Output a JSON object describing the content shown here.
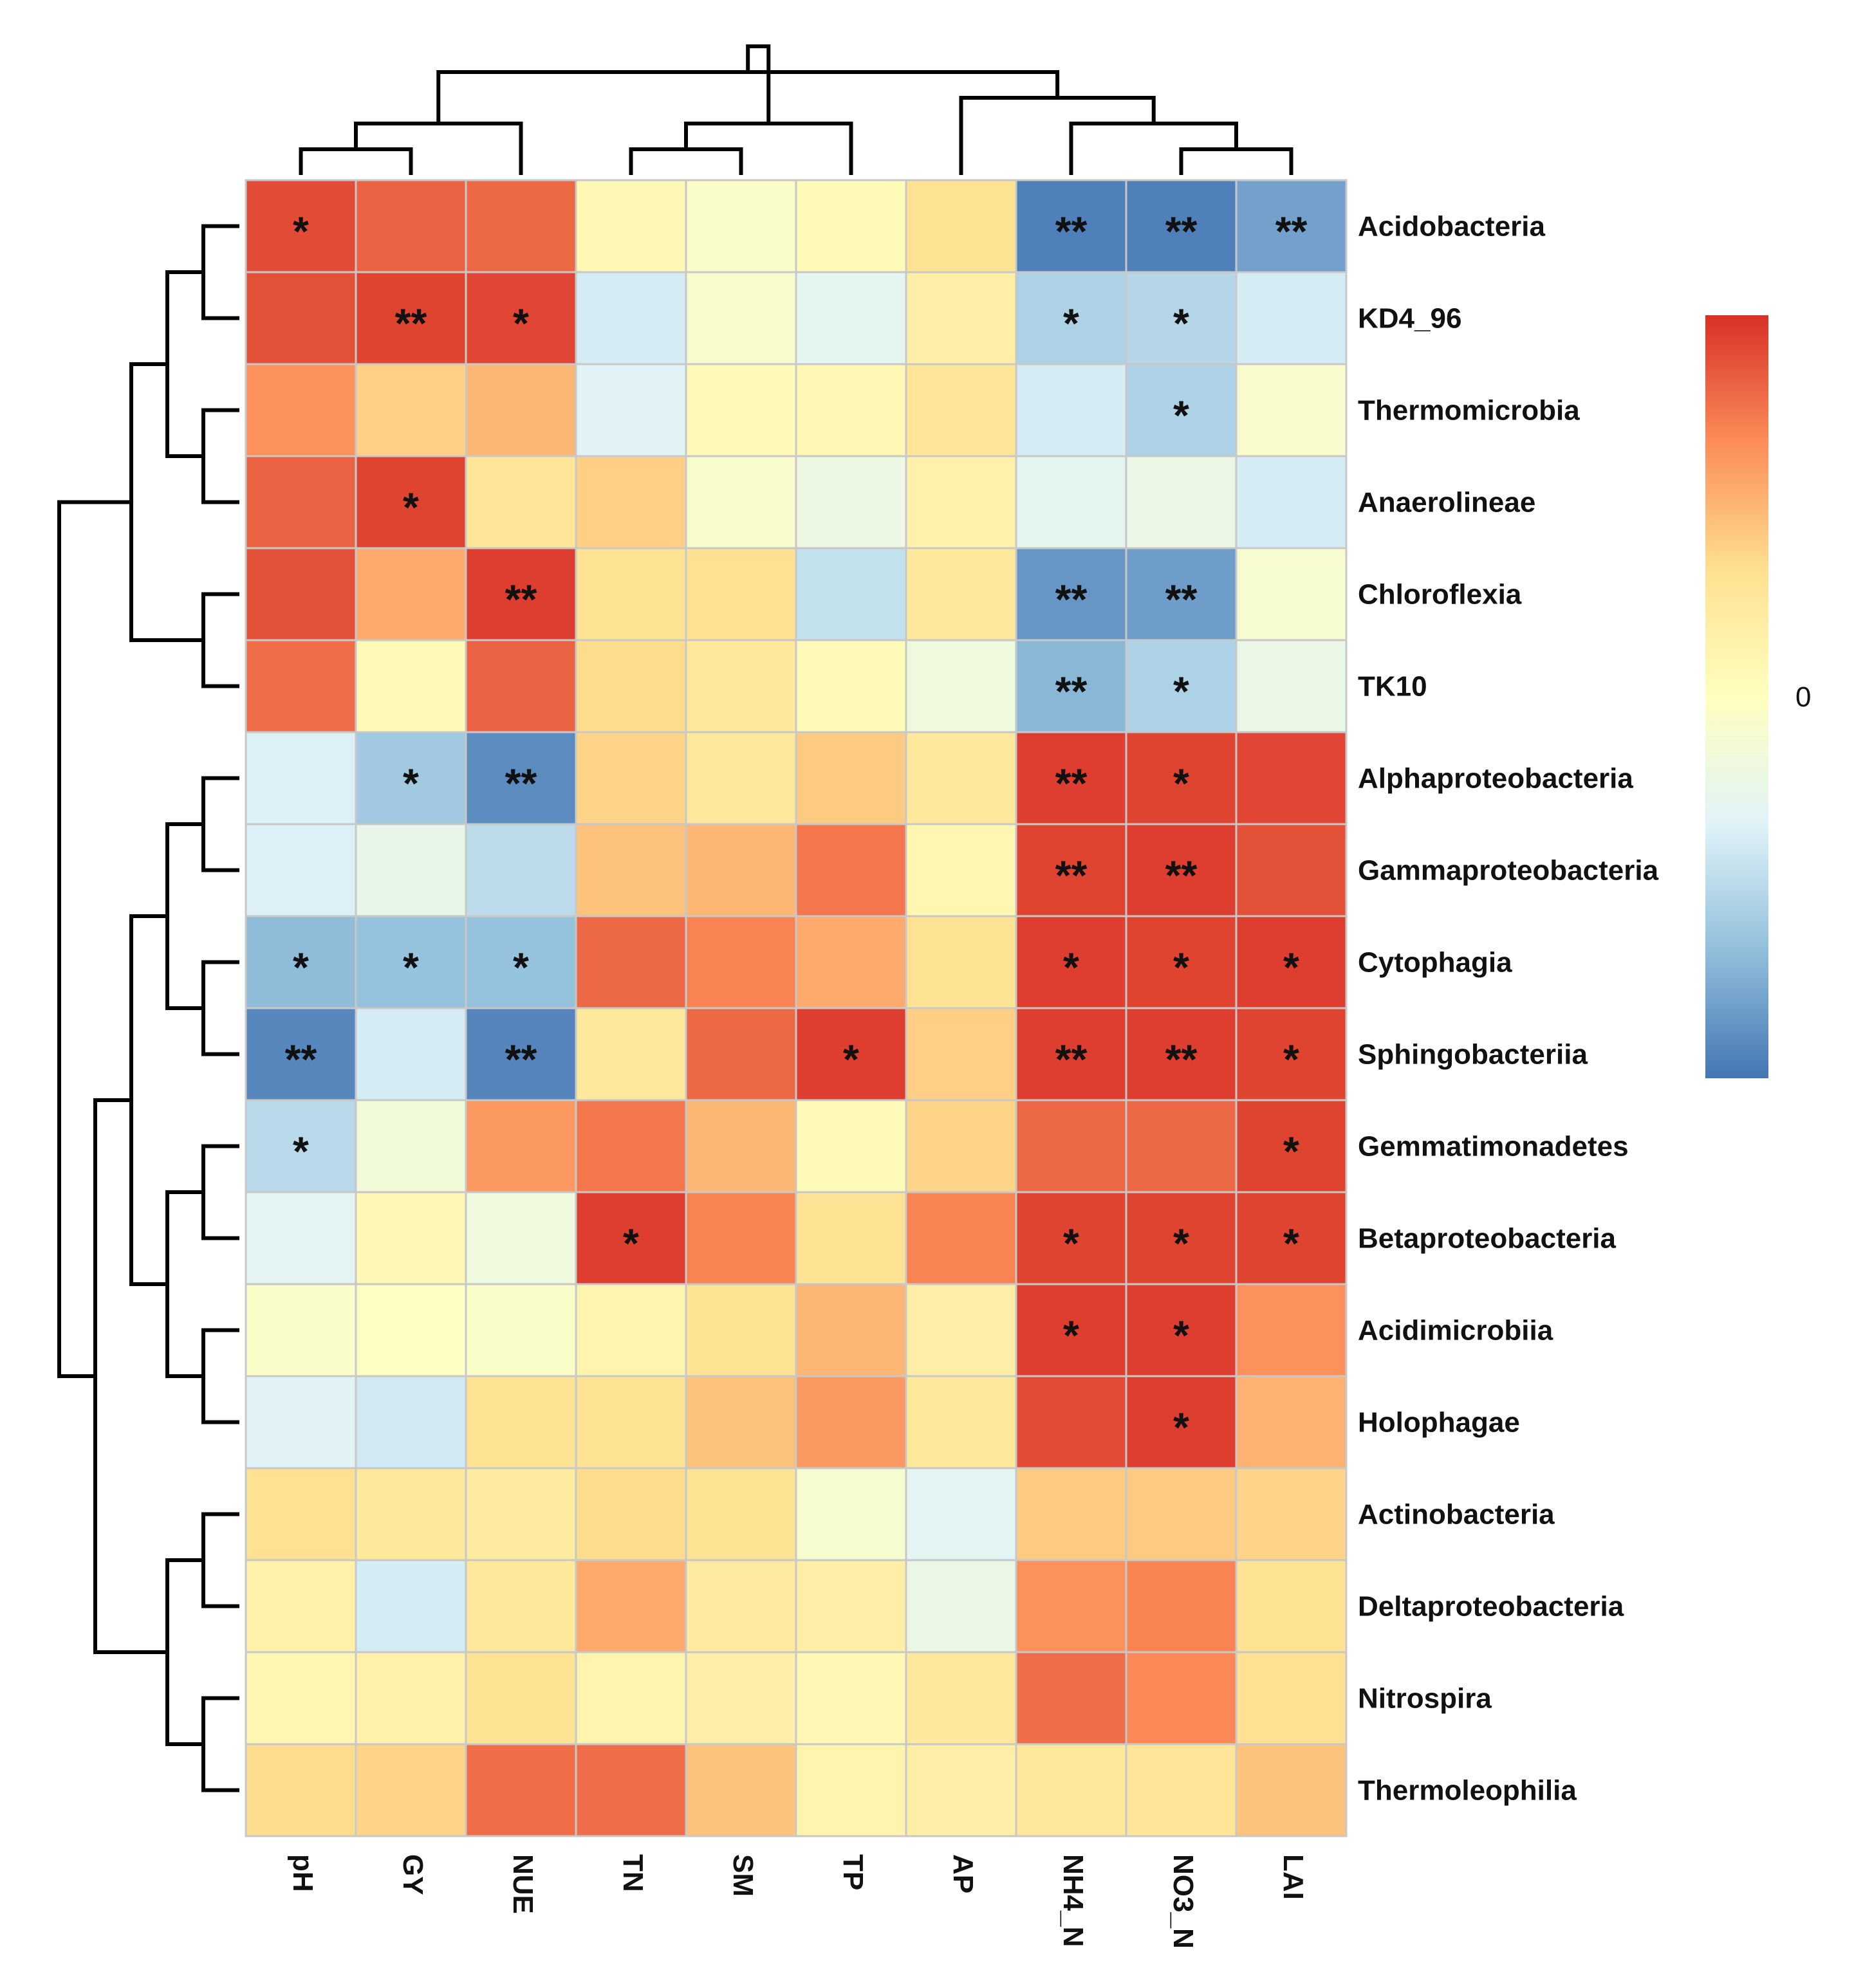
{
  "chart_data": {
    "type": "heatmap",
    "title": "",
    "columns": [
      "pH",
      "GY",
      "NUE",
      "TN",
      "SM",
      "TP",
      "AP",
      "NH4_N",
      "NO3_N",
      "LAI"
    ],
    "rows": [
      "Acidobacteria",
      "KD4_96",
      "Thermomicrobia",
      "Anaerolineae",
      "Chloroflexia",
      "TK10",
      "Alphaproteobacteria",
      "Gammaproteobacteria",
      "Cytophagia",
      "Sphingobacteriia",
      "Gemmatimonadetes",
      "Betaproteobacteria",
      "Acidimicrobiia",
      "Holophagae",
      "Actinobacteria",
      "Deltaproteobacteria",
      "Nitrospira",
      "Thermoleophilia"
    ],
    "values": [
      [
        0.9,
        0.82,
        0.8,
        0.08,
        -0.05,
        0.05,
        0.3,
        -0.95,
        -0.95,
        -0.8
      ],
      [
        0.88,
        0.93,
        0.92,
        -0.38,
        -0.08,
        -0.28,
        0.18,
        -0.55,
        -0.52,
        -0.38
      ],
      [
        0.65,
        0.4,
        0.5,
        -0.32,
        0.05,
        0.08,
        0.28,
        -0.38,
        -0.55,
        -0.08
      ],
      [
        0.82,
        0.93,
        0.28,
        0.4,
        -0.07,
        -0.2,
        0.15,
        -0.28,
        -0.22,
        -0.38
      ],
      [
        0.88,
        0.55,
        0.95,
        0.3,
        0.32,
        -0.45,
        0.25,
        -0.85,
        -0.82,
        -0.1
      ],
      [
        0.78,
        0.05,
        0.82,
        0.35,
        0.25,
        0.05,
        -0.18,
        -0.7,
        -0.55,
        -0.22
      ],
      [
        -0.35,
        -0.6,
        -0.9,
        0.38,
        0.25,
        0.42,
        0.25,
        0.95,
        0.93,
        0.92
      ],
      [
        -0.35,
        -0.25,
        -0.48,
        0.45,
        0.5,
        0.75,
        0.1,
        0.93,
        0.95,
        0.88
      ],
      [
        -0.68,
        -0.65,
        -0.65,
        0.8,
        0.7,
        0.55,
        0.3,
        0.95,
        0.93,
        0.95
      ],
      [
        -0.92,
        -0.38,
        -0.93,
        0.25,
        0.8,
        0.95,
        0.4,
        0.95,
        0.95,
        0.93
      ],
      [
        -0.5,
        -0.15,
        0.62,
        0.75,
        0.5,
        0.05,
        0.38,
        0.8,
        0.8,
        0.93
      ],
      [
        -0.3,
        0.08,
        -0.18,
        0.95,
        0.7,
        0.3,
        0.7,
        0.93,
        0.93,
        0.93
      ],
      [
        -0.05,
        -0.03,
        -0.05,
        0.12,
        0.3,
        0.5,
        0.18,
        0.95,
        0.95,
        0.65
      ],
      [
        -0.32,
        -0.4,
        0.3,
        0.3,
        0.45,
        0.62,
        0.25,
        0.9,
        0.95,
        0.52
      ],
      [
        0.32,
        0.25,
        0.22,
        0.35,
        0.3,
        -0.1,
        -0.3,
        0.42,
        0.42,
        0.38
      ],
      [
        0.15,
        -0.38,
        0.25,
        0.55,
        0.22,
        0.18,
        -0.22,
        0.65,
        0.7,
        0.3
      ],
      [
        0.1,
        0.15,
        0.3,
        0.12,
        0.18,
        0.08,
        0.25,
        0.78,
        0.68,
        0.32
      ],
      [
        0.35,
        0.38,
        0.78,
        0.78,
        0.45,
        0.12,
        0.18,
        0.25,
        0.28,
        0.45
      ]
    ],
    "significance": [
      [
        "*",
        "",
        "",
        "",
        "",
        "",
        "",
        "**",
        "**",
        "**"
      ],
      [
        "",
        "**",
        "*",
        "",
        "",
        "",
        "",
        "*",
        "*",
        ""
      ],
      [
        "",
        "",
        "",
        "",
        "",
        "",
        "",
        "",
        "*",
        ""
      ],
      [
        "",
        "*",
        "",
        "",
        "",
        "",
        "",
        "",
        "",
        ""
      ],
      [
        "",
        "",
        "**",
        "",
        "",
        "",
        "",
        "**",
        "**",
        ""
      ],
      [
        "",
        "",
        "",
        "",
        "",
        "",
        "",
        "**",
        "*",
        ""
      ],
      [
        "",
        "*",
        "**",
        "",
        "",
        "",
        "",
        "**",
        "*",
        ""
      ],
      [
        "",
        "",
        "",
        "",
        "",
        "",
        "",
        "**",
        "**",
        ""
      ],
      [
        "*",
        "*",
        "*",
        "",
        "",
        "",
        "",
        "*",
        "*",
        "*"
      ],
      [
        "**",
        "",
        "**",
        "",
        "",
        "*",
        "",
        "**",
        "**",
        "*"
      ],
      [
        "*",
        "",
        "",
        "",
        "",
        "",
        "",
        "",
        "",
        "*"
      ],
      [
        "",
        "",
        "",
        "*",
        "",
        "",
        "",
        "*",
        "*",
        "*"
      ],
      [
        "",
        "",
        "",
        "",
        "",
        "",
        "",
        "*",
        "*",
        ""
      ],
      [
        "",
        "",
        "",
        "",
        "",
        "",
        "",
        "",
        "*",
        ""
      ],
      [
        "",
        "",
        "",
        "",
        "",
        "",
        "",
        "",
        "",
        ""
      ],
      [
        "",
        "",
        "",
        "",
        "",
        "",
        "",
        "",
        "",
        ""
      ],
      [
        "",
        "",
        "",
        "",
        "",
        "",
        "",
        "",
        "",
        ""
      ],
      [
        "",
        "",
        "",
        "",
        "",
        "",
        "",
        "",
        "",
        ""
      ]
    ],
    "color_scale": {
      "low": "#4575b4",
      "mid": "#ffffbf",
      "high": "#d73027",
      "stops": [
        "#4575b4",
        "#91bfdb",
        "#e0f3f8",
        "#ffffbf",
        "#fee090",
        "#fc8d59",
        "#d73027"
      ],
      "range": [
        -1,
        1
      ]
    },
    "legend": {
      "tick_labels": [
        "0"
      ],
      "tick_values": [
        0
      ],
      "placement": "right"
    },
    "column_dendrogram": [
      [
        0,
        1
      ],
      [
        10,
        2
      ],
      [
        3,
        4
      ],
      [
        12,
        5
      ],
      [
        8,
        9
      ],
      [
        7,
        14
      ],
      [
        6,
        15
      ],
      [
        11,
        16
      ],
      [
        13,
        17
      ]
    ],
    "row_dendrogram": [
      [
        0,
        1
      ],
      [
        2,
        3
      ],
      [
        18,
        19
      ],
      [
        4,
        5
      ],
      [
        20,
        21
      ],
      [
        6,
        7
      ],
      [
        8,
        9
      ],
      [
        23,
        24
      ],
      [
        10,
        11
      ],
      [
        12,
        13
      ],
      [
        26,
        27
      ],
      [
        25,
        28
      ],
      [
        14,
        15
      ],
      [
        16,
        17
      ],
      [
        30,
        31
      ],
      [
        29,
        32
      ],
      [
        22,
        33
      ]
    ],
    "grid": false
  }
}
